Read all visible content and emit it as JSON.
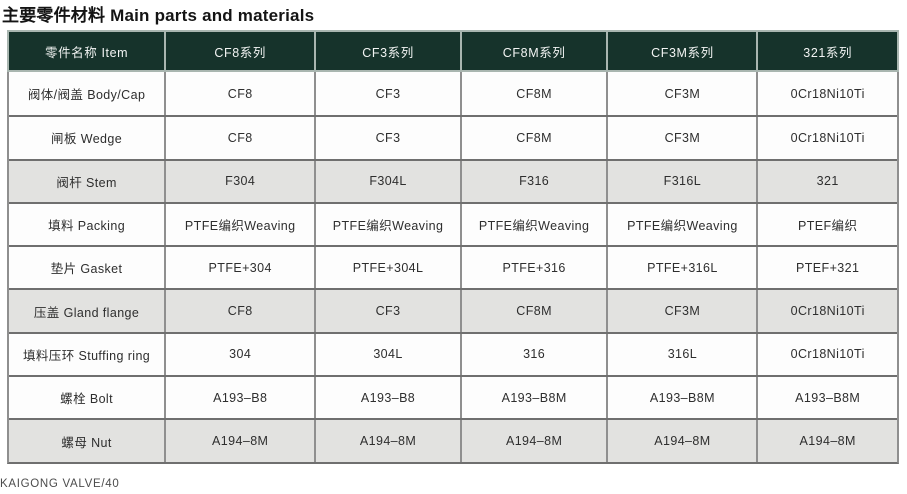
{
  "title": "主要零件材料 Main parts and materials",
  "footer": "KAIGONG VALVE/40",
  "table": {
    "headers": [
      "零件名称 Item",
      "CF8系列",
      "CF3系列",
      "CF8M系列",
      "CF3M系列",
      "321系列"
    ],
    "rows": [
      {
        "item": "阀体/阀盖 Body/Cap",
        "values": [
          "CF8",
          "CF3",
          "CF8M",
          "CF3M",
          "0Cr18Ni10Ti"
        ],
        "shaded": false
      },
      {
        "item": "闸板 Wedge",
        "values": [
          "CF8",
          "CF3",
          "CF8M",
          "CF3M",
          "0Cr18Ni10Ti"
        ],
        "shaded": false
      },
      {
        "item": "阀杆 Stem",
        "values": [
          "F304",
          "F304L",
          "F316",
          "F316L",
          "321"
        ],
        "shaded": true
      },
      {
        "item": "填料 Packing",
        "values": [
          "PTFE编织Weaving",
          "PTFE编织Weaving",
          "PTFE编织Weaving",
          "PTFE编织Weaving",
          "PTEF编织"
        ],
        "shaded": false
      },
      {
        "item": "垫片 Gasket",
        "values": [
          "PTFE+304",
          "PTFE+304L",
          "PTFE+316",
          "PTFE+316L",
          "PTEF+321"
        ],
        "shaded": false
      },
      {
        "item": "压盖 Gland flange",
        "values": [
          "CF8",
          "CF3",
          "CF8M",
          "CF3M",
          "0Cr18Ni10Ti"
        ],
        "shaded": true
      },
      {
        "item": "填料压环 Stuffing ring",
        "values": [
          "304",
          "304L",
          "316",
          "316L",
          "0Cr18Ni10Ti"
        ],
        "shaded": false
      },
      {
        "item": "螺栓 Bolt",
        "values": [
          "A193–B8",
          "A193–B8",
          "A193–B8M",
          "A193–B8M",
          "A193–B8M"
        ],
        "shaded": false
      },
      {
        "item": "螺母 Nut",
        "values": [
          "A194–8M",
          "A194–8M",
          "A194–8M",
          "A194–8M",
          "A194–8M"
        ],
        "shaded": true
      }
    ]
  },
  "colors": {
    "header_bg": "#16332b",
    "header_text": "#f2f4f3",
    "shaded_row_bg": "#e2e2e0",
    "row_bg": "#fdfdfd",
    "grid_line": "#6f6f6f"
  }
}
